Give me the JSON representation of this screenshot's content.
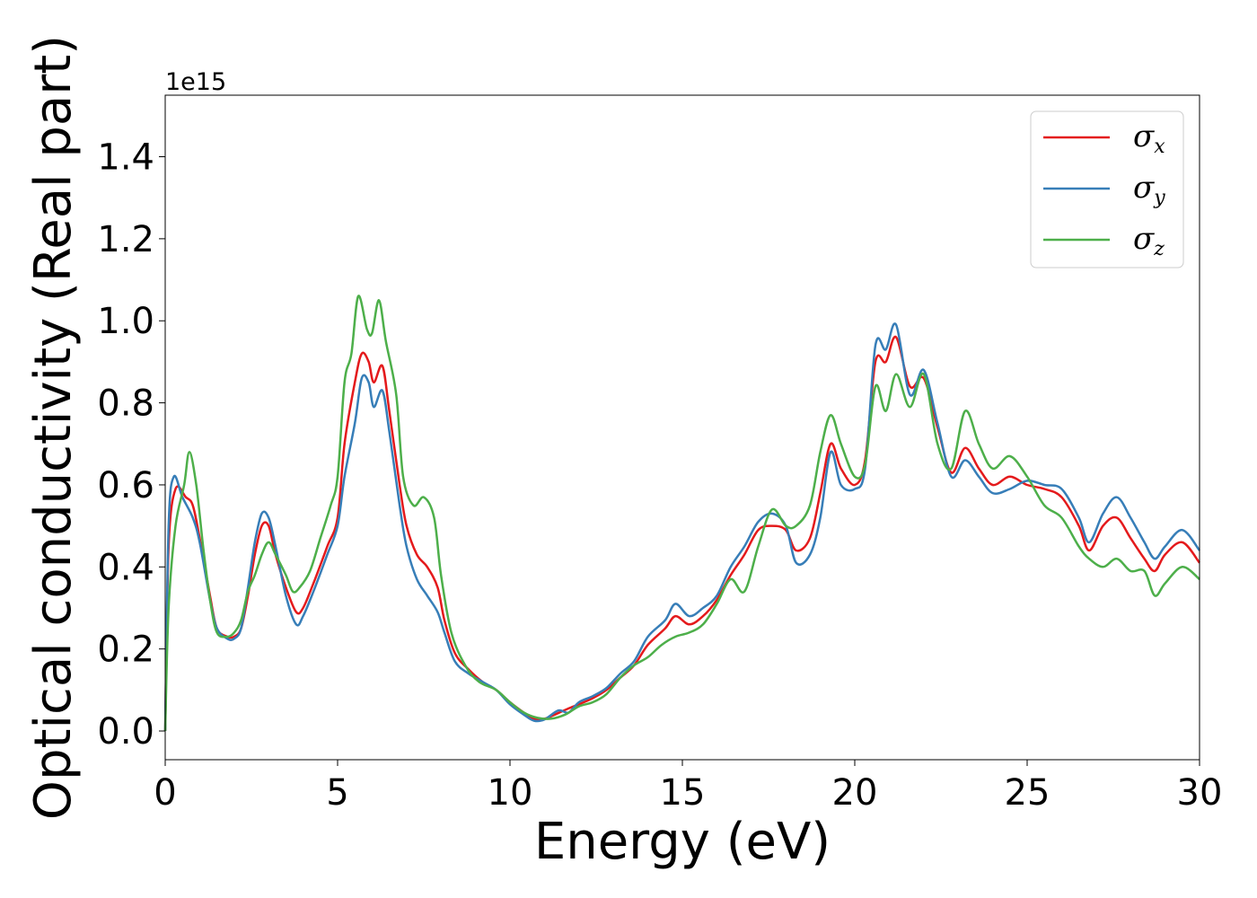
{
  "chart_data": {
    "type": "line",
    "xlabel": "Energy (eV)",
    "ylabel": "Optical conductivity (Real part)",
    "y_offset_label": "1e15",
    "xlim": [
      0,
      30
    ],
    "ylim": [
      -0.07,
      1.55
    ],
    "x_ticks": [
      0,
      5,
      10,
      15,
      20,
      25,
      30
    ],
    "x_tick_labels": [
      "0",
      "5",
      "10",
      "15",
      "20",
      "25",
      "30"
    ],
    "y_ticks": [
      0.0,
      0.2,
      0.4,
      0.6,
      0.8,
      1.0,
      1.2,
      1.4
    ],
    "y_tick_labels": [
      "0.0",
      "0.2",
      "0.4",
      "0.6",
      "0.8",
      "1.0",
      "1.2",
      "1.4"
    ],
    "grid": false,
    "legend_position": "top-right",
    "series": [
      {
        "name": "σx",
        "symbol": "σ",
        "subscript": "x",
        "color": "#e41a1c",
        "points": [
          [
            0,
            0.0
          ],
          [
            0.1,
            0.45
          ],
          [
            0.3,
            0.59
          ],
          [
            0.6,
            0.57
          ],
          [
            0.8,
            0.55
          ],
          [
            1.0,
            0.47
          ],
          [
            1.3,
            0.33
          ],
          [
            1.5,
            0.25
          ],
          [
            1.8,
            0.23
          ],
          [
            2.0,
            0.23
          ],
          [
            2.2,
            0.25
          ],
          [
            2.4,
            0.33
          ],
          [
            2.6,
            0.43
          ],
          [
            2.8,
            0.5
          ],
          [
            3.0,
            0.5
          ],
          [
            3.2,
            0.43
          ],
          [
            3.5,
            0.35
          ],
          [
            3.8,
            0.29
          ],
          [
            4.0,
            0.3
          ],
          [
            4.3,
            0.36
          ],
          [
            4.7,
            0.45
          ],
          [
            5.0,
            0.52
          ],
          [
            5.2,
            0.7
          ],
          [
            5.5,
            0.85
          ],
          [
            5.7,
            0.92
          ],
          [
            5.9,
            0.9
          ],
          [
            6.05,
            0.85
          ],
          [
            6.3,
            0.89
          ],
          [
            6.5,
            0.78
          ],
          [
            6.8,
            0.6
          ],
          [
            7.0,
            0.5
          ],
          [
            7.3,
            0.43
          ],
          [
            7.6,
            0.4
          ],
          [
            7.9,
            0.35
          ],
          [
            8.1,
            0.27
          ],
          [
            8.4,
            0.19
          ],
          [
            8.8,
            0.15
          ],
          [
            9.2,
            0.12
          ],
          [
            9.6,
            0.1
          ],
          [
            10.0,
            0.07
          ],
          [
            10.4,
            0.045
          ],
          [
            10.7,
            0.03
          ],
          [
            11.0,
            0.03
          ],
          [
            11.3,
            0.04
          ],
          [
            11.7,
            0.055
          ],
          [
            12.0,
            0.065
          ],
          [
            12.4,
            0.08
          ],
          [
            12.8,
            0.1
          ],
          [
            13.2,
            0.13
          ],
          [
            13.6,
            0.16
          ],
          [
            14.0,
            0.21
          ],
          [
            14.5,
            0.25
          ],
          [
            14.8,
            0.28
          ],
          [
            15.2,
            0.26
          ],
          [
            15.6,
            0.28
          ],
          [
            16.0,
            0.32
          ],
          [
            16.4,
            0.38
          ],
          [
            16.8,
            0.43
          ],
          [
            17.2,
            0.49
          ],
          [
            17.6,
            0.5
          ],
          [
            18.0,
            0.49
          ],
          [
            18.3,
            0.44
          ],
          [
            18.7,
            0.47
          ],
          [
            19.0,
            0.58
          ],
          [
            19.3,
            0.7
          ],
          [
            19.6,
            0.64
          ],
          [
            20.0,
            0.6
          ],
          [
            20.3,
            0.66
          ],
          [
            20.6,
            0.9
          ],
          [
            20.9,
            0.9
          ],
          [
            21.2,
            0.96
          ],
          [
            21.6,
            0.84
          ],
          [
            22.0,
            0.86
          ],
          [
            22.4,
            0.74
          ],
          [
            22.8,
            0.63
          ],
          [
            23.2,
            0.69
          ],
          [
            23.6,
            0.64
          ],
          [
            24.0,
            0.6
          ],
          [
            24.5,
            0.62
          ],
          [
            25.0,
            0.6
          ],
          [
            25.5,
            0.59
          ],
          [
            26.0,
            0.57
          ],
          [
            26.5,
            0.5
          ],
          [
            26.8,
            0.44
          ],
          [
            27.2,
            0.5
          ],
          [
            27.6,
            0.52
          ],
          [
            28.0,
            0.47
          ],
          [
            28.4,
            0.42
          ],
          [
            28.7,
            0.39
          ],
          [
            29.0,
            0.43
          ],
          [
            29.5,
            0.46
          ],
          [
            30.0,
            0.41
          ]
        ]
      },
      {
        "name": "σy",
        "symbol": "σ",
        "subscript": "y",
        "color": "#377eb8",
        "points": [
          [
            0,
            0.0
          ],
          [
            0.1,
            0.5
          ],
          [
            0.25,
            0.62
          ],
          [
            0.5,
            0.57
          ],
          [
            0.8,
            0.52
          ],
          [
            1.0,
            0.46
          ],
          [
            1.3,
            0.32
          ],
          [
            1.5,
            0.25
          ],
          [
            1.8,
            0.225
          ],
          [
            2.0,
            0.225
          ],
          [
            2.2,
            0.25
          ],
          [
            2.4,
            0.35
          ],
          [
            2.6,
            0.46
          ],
          [
            2.8,
            0.53
          ],
          [
            3.0,
            0.52
          ],
          [
            3.2,
            0.45
          ],
          [
            3.5,
            0.33
          ],
          [
            3.8,
            0.26
          ],
          [
            4.0,
            0.28
          ],
          [
            4.3,
            0.34
          ],
          [
            4.7,
            0.43
          ],
          [
            5.0,
            0.5
          ],
          [
            5.2,
            0.62
          ],
          [
            5.5,
            0.75
          ],
          [
            5.7,
            0.86
          ],
          [
            5.9,
            0.85
          ],
          [
            6.05,
            0.79
          ],
          [
            6.3,
            0.83
          ],
          [
            6.5,
            0.73
          ],
          [
            6.8,
            0.55
          ],
          [
            7.0,
            0.45
          ],
          [
            7.3,
            0.37
          ],
          [
            7.6,
            0.33
          ],
          [
            7.9,
            0.29
          ],
          [
            8.1,
            0.24
          ],
          [
            8.4,
            0.17
          ],
          [
            8.8,
            0.14
          ],
          [
            9.2,
            0.12
          ],
          [
            9.6,
            0.1
          ],
          [
            10.0,
            0.065
          ],
          [
            10.4,
            0.04
          ],
          [
            10.7,
            0.025
          ],
          [
            11.0,
            0.028
          ],
          [
            11.4,
            0.05
          ],
          [
            11.7,
            0.045
          ],
          [
            12.0,
            0.07
          ],
          [
            12.4,
            0.085
          ],
          [
            12.8,
            0.105
          ],
          [
            13.2,
            0.14
          ],
          [
            13.6,
            0.17
          ],
          [
            14.0,
            0.23
          ],
          [
            14.5,
            0.27
          ],
          [
            14.8,
            0.31
          ],
          [
            15.2,
            0.28
          ],
          [
            15.6,
            0.3
          ],
          [
            16.0,
            0.33
          ],
          [
            16.4,
            0.4
          ],
          [
            16.8,
            0.45
          ],
          [
            17.2,
            0.51
          ],
          [
            17.6,
            0.53
          ],
          [
            18.0,
            0.5
          ],
          [
            18.3,
            0.41
          ],
          [
            18.7,
            0.43
          ],
          [
            19.0,
            0.52
          ],
          [
            19.3,
            0.68
          ],
          [
            19.6,
            0.6
          ],
          [
            20.0,
            0.59
          ],
          [
            20.3,
            0.64
          ],
          [
            20.6,
            0.94
          ],
          [
            20.9,
            0.93
          ],
          [
            21.2,
            0.99
          ],
          [
            21.6,
            0.82
          ],
          [
            22.0,
            0.88
          ],
          [
            22.4,
            0.75
          ],
          [
            22.8,
            0.62
          ],
          [
            23.2,
            0.66
          ],
          [
            23.6,
            0.62
          ],
          [
            24.0,
            0.58
          ],
          [
            24.5,
            0.59
          ],
          [
            25.0,
            0.61
          ],
          [
            25.5,
            0.6
          ],
          [
            26.0,
            0.59
          ],
          [
            26.5,
            0.52
          ],
          [
            26.8,
            0.46
          ],
          [
            27.2,
            0.53
          ],
          [
            27.6,
            0.57
          ],
          [
            28.0,
            0.52
          ],
          [
            28.4,
            0.46
          ],
          [
            28.7,
            0.42
          ],
          [
            29.0,
            0.45
          ],
          [
            29.5,
            0.49
          ],
          [
            30.0,
            0.44
          ]
        ]
      },
      {
        "name": "σz",
        "symbol": "σ",
        "subscript": "z",
        "color": "#4daf4a",
        "points": [
          [
            0,
            0.0
          ],
          [
            0.1,
            0.3
          ],
          [
            0.3,
            0.5
          ],
          [
            0.55,
            0.6
          ],
          [
            0.7,
            0.68
          ],
          [
            0.9,
            0.6
          ],
          [
            1.1,
            0.45
          ],
          [
            1.3,
            0.32
          ],
          [
            1.5,
            0.24
          ],
          [
            1.8,
            0.23
          ],
          [
            2.0,
            0.24
          ],
          [
            2.2,
            0.27
          ],
          [
            2.4,
            0.34
          ],
          [
            2.6,
            0.38
          ],
          [
            2.8,
            0.43
          ],
          [
            3.0,
            0.46
          ],
          [
            3.2,
            0.43
          ],
          [
            3.5,
            0.38
          ],
          [
            3.7,
            0.34
          ],
          [
            3.9,
            0.35
          ],
          [
            4.2,
            0.39
          ],
          [
            4.5,
            0.47
          ],
          [
            4.8,
            0.55
          ],
          [
            5.0,
            0.62
          ],
          [
            5.2,
            0.85
          ],
          [
            5.4,
            0.92
          ],
          [
            5.6,
            1.06
          ],
          [
            5.85,
            0.98
          ],
          [
            6.0,
            0.97
          ],
          [
            6.2,
            1.05
          ],
          [
            6.4,
            0.95
          ],
          [
            6.7,
            0.82
          ],
          [
            6.9,
            0.62
          ],
          [
            7.2,
            0.55
          ],
          [
            7.5,
            0.57
          ],
          [
            7.8,
            0.52
          ],
          [
            8.0,
            0.38
          ],
          [
            8.3,
            0.24
          ],
          [
            8.7,
            0.16
          ],
          [
            9.1,
            0.12
          ],
          [
            9.6,
            0.1
          ],
          [
            10.0,
            0.07
          ],
          [
            10.4,
            0.045
          ],
          [
            10.8,
            0.032
          ],
          [
            11.2,
            0.03
          ],
          [
            11.6,
            0.04
          ],
          [
            12.0,
            0.06
          ],
          [
            12.4,
            0.07
          ],
          [
            12.8,
            0.09
          ],
          [
            13.2,
            0.13
          ],
          [
            13.6,
            0.16
          ],
          [
            14.0,
            0.18
          ],
          [
            14.4,
            0.21
          ],
          [
            14.8,
            0.23
          ],
          [
            15.2,
            0.24
          ],
          [
            15.6,
            0.26
          ],
          [
            16.0,
            0.31
          ],
          [
            16.4,
            0.37
          ],
          [
            16.8,
            0.34
          ],
          [
            17.2,
            0.45
          ],
          [
            17.6,
            0.54
          ],
          [
            18.0,
            0.5
          ],
          [
            18.3,
            0.5
          ],
          [
            18.7,
            0.55
          ],
          [
            19.0,
            0.68
          ],
          [
            19.3,
            0.77
          ],
          [
            19.6,
            0.7
          ],
          [
            20.0,
            0.62
          ],
          [
            20.3,
            0.65
          ],
          [
            20.6,
            0.84
          ],
          [
            20.9,
            0.78
          ],
          [
            21.2,
            0.87
          ],
          [
            21.6,
            0.79
          ],
          [
            22.0,
            0.87
          ],
          [
            22.4,
            0.7
          ],
          [
            22.8,
            0.64
          ],
          [
            23.2,
            0.78
          ],
          [
            23.6,
            0.7
          ],
          [
            24.0,
            0.64
          ],
          [
            24.5,
            0.67
          ],
          [
            25.0,
            0.62
          ],
          [
            25.5,
            0.55
          ],
          [
            26.0,
            0.52
          ],
          [
            26.5,
            0.45
          ],
          [
            26.8,
            0.42
          ],
          [
            27.2,
            0.4
          ],
          [
            27.6,
            0.42
          ],
          [
            28.0,
            0.39
          ],
          [
            28.4,
            0.39
          ],
          [
            28.7,
            0.33
          ],
          [
            29.0,
            0.36
          ],
          [
            29.5,
            0.4
          ],
          [
            30.0,
            0.37
          ]
        ]
      }
    ]
  }
}
